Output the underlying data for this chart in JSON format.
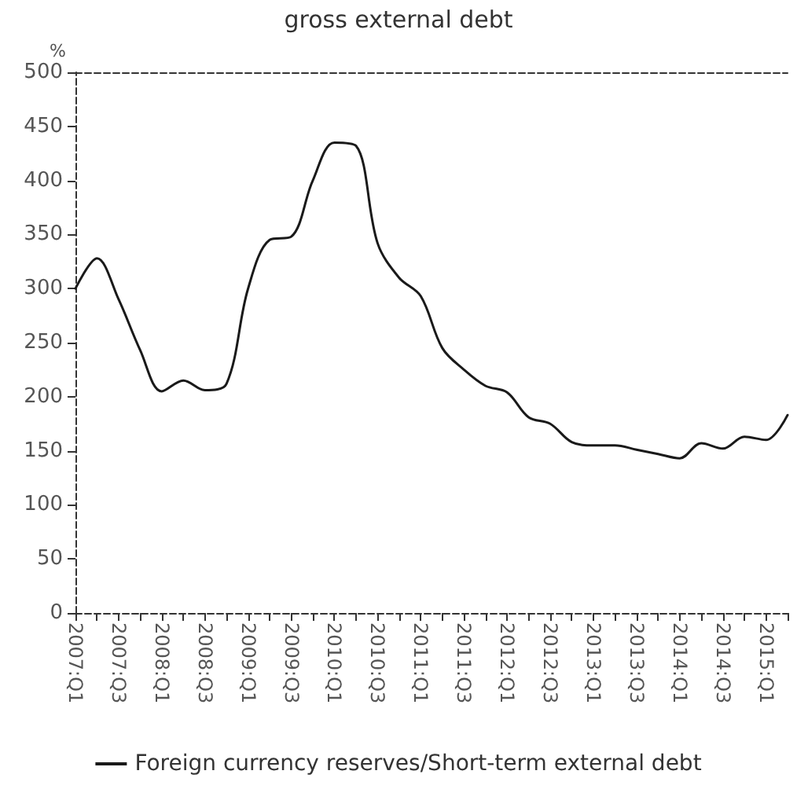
{
  "chart_data": {
    "type": "line",
    "title": "gross external debt",
    "ylabel": "%",
    "categories": [
      "2007:Q1",
      null,
      "2007:Q3",
      null,
      "2008:Q1",
      null,
      "2008:Q3",
      null,
      "2009:Q1",
      null,
      "2009:Q3",
      null,
      "2010:Q1",
      null,
      "2010:Q3",
      null,
      "2011:Q1",
      null,
      "2011:Q3",
      null,
      "2012:Q1",
      null,
      "2012:Q3",
      null,
      "2013:Q1",
      null,
      "2013:Q3",
      null,
      "2014:Q1",
      null,
      "2014:Q3",
      null,
      "2015:Q1",
      null
    ],
    "series": [
      {
        "name": "Foreign currency reserves/Short-term external debt",
        "color": "#1a1a1a",
        "values": [
          300,
          328,
          290,
          243,
          205,
          215,
          206,
          212,
          300,
          345,
          348,
          400,
          435,
          432,
          342,
          310,
          293,
          245,
          225,
          210,
          204,
          181,
          175,
          158,
          155,
          155,
          151,
          147,
          143,
          157,
          152,
          163,
          160,
          183
        ]
      }
    ],
    "ylim": [
      0,
      500
    ],
    "yticks": [
      0,
      50,
      100,
      150,
      200,
      250,
      300,
      350,
      400,
      450,
      500
    ],
    "grid": false,
    "legend": "bottom",
    "marker": "none",
    "line_style": "solid"
  }
}
